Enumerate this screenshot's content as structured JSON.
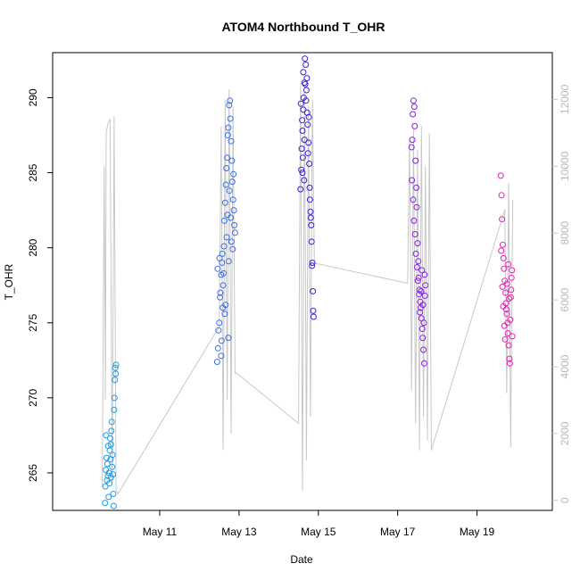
{
  "chart_data": {
    "type": "scatter",
    "title": "ATOM4 Northbound T_OHR",
    "xlabel": "Date",
    "ylabel": "T_OHR",
    "x_ticks": [
      "May 11",
      "May 13",
      "May 15",
      "May 17",
      "May 19"
    ],
    "x_tick_days": [
      11,
      13,
      15,
      17,
      19
    ],
    "xlim": [
      8.3,
      20.9
    ],
    "ylim": [
      262.5,
      293.0
    ],
    "y_ticks": [
      265,
      270,
      275,
      280,
      285,
      290
    ],
    "y2_ticks": [
      0,
      2000,
      4000,
      6000,
      8000,
      10000,
      12000
    ],
    "y2lim": [
      -300,
      13400
    ],
    "y2_color": "#c8c8c8",
    "legend": "none",
    "grid": false,
    "series": [
      {
        "color": "#1e9be6",
        "x": [
          9.7,
          9.8,
          9.9
        ],
        "y_min": 262.8,
        "y_max": 272.2,
        "points": [
          [
            9.62,
            263.0
          ],
          [
            9.63,
            264.1
          ],
          [
            9.64,
            265.2
          ],
          [
            9.66,
            266.0
          ],
          [
            9.67,
            264.5
          ],
          [
            9.68,
            265.6
          ],
          [
            9.7,
            266.8
          ],
          [
            9.71,
            263.4
          ],
          [
            9.72,
            265.0
          ],
          [
            9.73,
            264.3
          ],
          [
            9.74,
            266.5
          ],
          [
            9.75,
            267.3
          ],
          [
            9.76,
            265.9
          ],
          [
            9.77,
            264.7
          ],
          [
            9.78,
            267.8
          ],
          [
            9.79,
            268.4
          ],
          [
            9.8,
            265.4
          ],
          [
            9.81,
            266.2
          ],
          [
            9.82,
            264.9
          ],
          [
            9.83,
            263.6
          ],
          [
            9.84,
            262.8
          ],
          [
            9.85,
            269.2
          ],
          [
            9.86,
            270.0
          ],
          [
            9.87,
            271.2
          ],
          [
            9.88,
            272.0
          ],
          [
            9.89,
            271.6
          ],
          [
            9.9,
            272.2
          ],
          [
            9.65,
            267.5
          ],
          [
            9.69,
            264.8
          ],
          [
            9.77,
            266.9
          ]
        ]
      },
      {
        "color": "#3b6fe6",
        "points": [
          [
            12.45,
            272.4
          ],
          [
            12.47,
            273.3
          ],
          [
            12.5,
            275.0
          ],
          [
            12.52,
            276.7
          ],
          [
            12.55,
            278.2
          ],
          [
            12.57,
            279.0
          ],
          [
            12.6,
            277.5
          ],
          [
            12.62,
            280.1
          ],
          [
            12.63,
            281.8
          ],
          [
            12.65,
            283.0
          ],
          [
            12.67,
            284.2
          ],
          [
            12.68,
            285.3
          ],
          [
            12.7,
            286.0
          ],
          [
            12.72,
            287.5
          ],
          [
            12.73,
            288.0
          ],
          [
            12.75,
            289.5
          ],
          [
            12.77,
            289.8
          ],
          [
            12.78,
            288.6
          ],
          [
            12.8,
            287.1
          ],
          [
            12.82,
            285.8
          ],
          [
            12.83,
            284.4
          ],
          [
            12.85,
            283.2
          ],
          [
            12.87,
            282.5
          ],
          [
            12.88,
            281.5
          ],
          [
            12.9,
            281.0
          ],
          [
            12.48,
            274.5
          ],
          [
            12.53,
            277.0
          ],
          [
            12.58,
            279.6
          ],
          [
            12.61,
            278.3
          ],
          [
            12.66,
            276.2
          ],
          [
            12.69,
            280.7
          ],
          [
            12.71,
            282.2
          ],
          [
            12.74,
            279.1
          ],
          [
            12.76,
            283.8
          ],
          [
            12.79,
            282.0
          ],
          [
            12.81,
            280.4
          ],
          [
            12.84,
            279.9
          ],
          [
            12.86,
            284.9
          ],
          [
            12.56,
            273.8
          ],
          [
            12.64,
            275.6
          ],
          [
            12.46,
            278.6
          ],
          [
            12.51,
            279.3
          ],
          [
            12.59,
            276.0
          ],
          [
            12.73,
            274.0
          ],
          [
            12.55,
            272.8
          ]
        ]
      },
      {
        "color": "#3a1fd6",
        "points": [
          [
            14.55,
            283.9
          ],
          [
            14.57,
            285.2
          ],
          [
            14.58,
            286.6
          ],
          [
            14.6,
            287.8
          ],
          [
            14.62,
            289.2
          ],
          [
            14.63,
            290.0
          ],
          [
            14.65,
            291.0
          ],
          [
            14.66,
            292.6
          ],
          [
            14.68,
            292.2
          ],
          [
            14.7,
            290.5
          ],
          [
            14.72,
            289.0
          ],
          [
            14.73,
            288.2
          ],
          [
            14.75,
            287.0
          ],
          [
            14.77,
            285.6
          ],
          [
            14.78,
            284.0
          ],
          [
            14.8,
            282.4
          ],
          [
            14.82,
            281.5
          ],
          [
            14.83,
            280.4
          ],
          [
            14.85,
            279.0
          ],
          [
            14.86,
            277.1
          ],
          [
            14.87,
            275.8
          ],
          [
            14.88,
            275.4
          ],
          [
            14.56,
            289.6
          ],
          [
            14.59,
            288.5
          ],
          [
            14.61,
            286.0
          ],
          [
            14.64,
            284.5
          ],
          [
            14.67,
            290.9
          ],
          [
            14.69,
            289.8
          ],
          [
            14.71,
            291.3
          ],
          [
            14.74,
            286.3
          ],
          [
            14.76,
            288.7
          ],
          [
            14.79,
            283.2
          ],
          [
            14.81,
            282.0
          ],
          [
            14.84,
            278.8
          ],
          [
            14.6,
            285.0
          ],
          [
            14.62,
            291.7
          ],
          [
            14.65,
            287.2
          ]
        ]
      },
      {
        "color": "#8a1fe6",
        "points": [
          [
            17.35,
            286.7
          ],
          [
            17.37,
            287.2
          ],
          [
            17.38,
            288.9
          ],
          [
            17.4,
            289.8
          ],
          [
            17.42,
            289.4
          ],
          [
            17.43,
            288.1
          ],
          [
            17.45,
            285.8
          ],
          [
            17.47,
            284.0
          ],
          [
            17.48,
            282.7
          ],
          [
            17.5,
            280.3
          ],
          [
            17.52,
            279.1
          ],
          [
            17.53,
            278.0
          ],
          [
            17.55,
            277.2
          ],
          [
            17.57,
            276.4
          ],
          [
            17.58,
            276.0
          ],
          [
            17.6,
            275.3
          ],
          [
            17.62,
            274.6
          ],
          [
            17.63,
            274.0
          ],
          [
            17.65,
            273.2
          ],
          [
            17.67,
            272.3
          ],
          [
            17.68,
            278.2
          ],
          [
            17.7,
            277.5
          ],
          [
            17.36,
            284.5
          ],
          [
            17.39,
            283.2
          ],
          [
            17.41,
            281.8
          ],
          [
            17.44,
            280.9
          ],
          [
            17.46,
            279.6
          ],
          [
            17.49,
            278.7
          ],
          [
            17.51,
            277.8
          ],
          [
            17.54,
            276.9
          ],
          [
            17.56,
            275.7
          ],
          [
            17.59,
            277.1
          ],
          [
            17.61,
            278.5
          ],
          [
            17.64,
            276.2
          ],
          [
            17.66,
            275.0
          ],
          [
            17.69,
            276.8
          ]
        ]
      },
      {
        "color": "#e61fb3",
        "points": [
          [
            19.6,
            284.8
          ],
          [
            19.62,
            283.5
          ],
          [
            19.63,
            281.9
          ],
          [
            19.65,
            280.2
          ],
          [
            19.67,
            279.3
          ],
          [
            19.68,
            278.6
          ],
          [
            19.7,
            277.8
          ],
          [
            19.72,
            277.0
          ],
          [
            19.73,
            276.3
          ],
          [
            19.75,
            275.6
          ],
          [
            19.77,
            275.0
          ],
          [
            19.78,
            274.3
          ],
          [
            19.8,
            273.5
          ],
          [
            19.82,
            272.6
          ],
          [
            19.83,
            272.3
          ],
          [
            19.85,
            276.7
          ],
          [
            19.87,
            278.0
          ],
          [
            19.88,
            278.5
          ],
          [
            19.61,
            279.8
          ],
          [
            19.64,
            277.4
          ],
          [
            19.66,
            276.1
          ],
          [
            19.69,
            274.8
          ],
          [
            19.71,
            273.9
          ],
          [
            19.74,
            275.9
          ],
          [
            19.76,
            277.6
          ],
          [
            19.79,
            278.9
          ],
          [
            19.81,
            276.6
          ],
          [
            19.84,
            275.2
          ],
          [
            19.86,
            277.2
          ],
          [
            19.89,
            274.1
          ]
        ]
      }
    ],
    "secondary_line": {
      "color": "#c8c8c8",
      "x": [
        9.55,
        9.6,
        9.63,
        9.65,
        9.7,
        9.75,
        9.8,
        9.85,
        9.9,
        9.95,
        12.5,
        12.55,
        12.6,
        12.65,
        12.7,
        12.75,
        12.8,
        12.85,
        12.9,
        12.95,
        14.5,
        14.55,
        14.6,
        14.65,
        14.7,
        14.75,
        14.8,
        14.85,
        14.9,
        17.25,
        17.3,
        17.35,
        17.4,
        17.45,
        17.5,
        17.55,
        17.6,
        17.65,
        17.7,
        17.75,
        17.8,
        17.85,
        19.7,
        19.75,
        19.8,
        19.85,
        19.9
      ],
      "y": [
        400,
        10000,
        3000,
        11000,
        11300,
        11400,
        500,
        11500,
        300,
        200,
        5200,
        11200,
        1500,
        12000,
        3000,
        12300,
        2000,
        11800,
        3800,
        3800,
        2300,
        12500,
        300,
        12200,
        1200,
        11800,
        2500,
        12000,
        7100,
        6500,
        10800,
        3300,
        11100,
        2300,
        10500,
        1500,
        11200,
        2500,
        10000,
        1800,
        11000,
        1500,
        8700,
        3200,
        9500,
        1600,
        9000
      ]
    }
  }
}
